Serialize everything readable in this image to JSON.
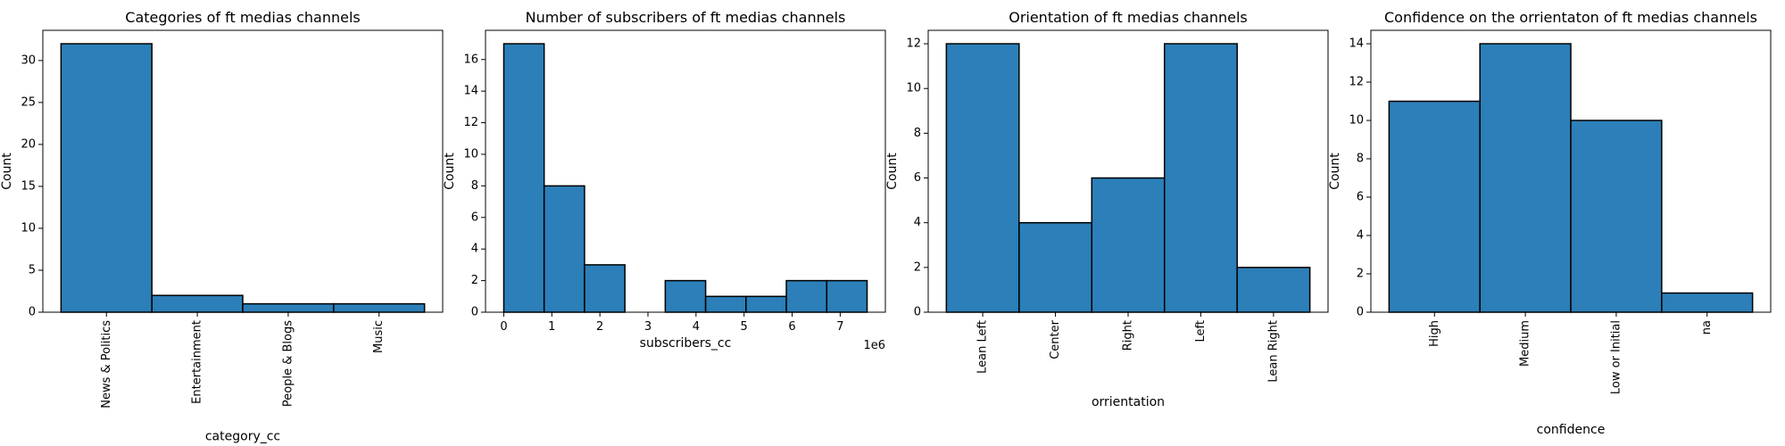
{
  "figure": {
    "background": "#ffffff",
    "bar_color": "#2c7fb8",
    "edge_color": "#000000"
  },
  "chart_data": [
    {
      "type": "bar",
      "title": "Categories of ft medias channels",
      "xlabel": "category_cc",
      "ylabel": "Count",
      "categories": [
        "News & Politics",
        "Entertainment",
        "People & Blogs",
        "Music"
      ],
      "values": [
        32,
        2,
        1,
        1
      ],
      "ylim": [
        0,
        33.6
      ],
      "yticks": [
        0,
        5,
        10,
        15,
        20,
        25,
        30
      ],
      "x_tick_rotation": -90,
      "grid": false,
      "legend": "none"
    },
    {
      "type": "bar",
      "title": "Number of subscribers of ft medias channels",
      "xlabel": "subscribers_cc",
      "ylabel": "Count",
      "x_offset_label": "1e6",
      "bins": [
        {
          "start": 0.0,
          "end": 0.84,
          "count": 17
        },
        {
          "start": 0.84,
          "end": 1.68,
          "count": 8
        },
        {
          "start": 1.68,
          "end": 2.52,
          "count": 3
        },
        {
          "start": 2.52,
          "end": 3.36,
          "count": 0
        },
        {
          "start": 3.36,
          "end": 4.2,
          "count": 2
        },
        {
          "start": 4.2,
          "end": 5.04,
          "count": 1
        },
        {
          "start": 5.04,
          "end": 5.88,
          "count": 1
        },
        {
          "start": 5.88,
          "end": 6.72,
          "count": 2
        },
        {
          "start": 6.72,
          "end": 7.56,
          "count": 2
        }
      ],
      "xlim": [
        -0.38,
        7.94
      ],
      "xticks": [
        0,
        1,
        2,
        3,
        4,
        5,
        6,
        7
      ],
      "ylim": [
        0,
        17.85
      ],
      "yticks": [
        0,
        2,
        4,
        6,
        8,
        10,
        12,
        14,
        16
      ],
      "grid": false,
      "legend": "none"
    },
    {
      "type": "bar",
      "title": "Orientation of ft medias channels",
      "xlabel": "orrientation",
      "ylabel": "Count",
      "categories": [
        "Lean Left",
        "Center",
        "Right",
        "Left",
        "Lean Right"
      ],
      "values": [
        12,
        4,
        6,
        12,
        2
      ],
      "ylim": [
        0,
        12.6
      ],
      "yticks": [
        0,
        2,
        4,
        6,
        8,
        10,
        12
      ],
      "x_tick_rotation": -90,
      "grid": false,
      "legend": "none"
    },
    {
      "type": "bar",
      "title": "Confidence on the orrientaton of ft medias channels",
      "xlabel": "confidence",
      "ylabel": "Count",
      "categories": [
        "High",
        "Medium",
        "Low or Initial",
        "na"
      ],
      "values": [
        11,
        14,
        10,
        1
      ],
      "ylim": [
        0,
        14.7
      ],
      "yticks": [
        0,
        2,
        4,
        6,
        8,
        10,
        12,
        14
      ],
      "x_tick_rotation": -90,
      "grid": false,
      "legend": "none"
    }
  ]
}
